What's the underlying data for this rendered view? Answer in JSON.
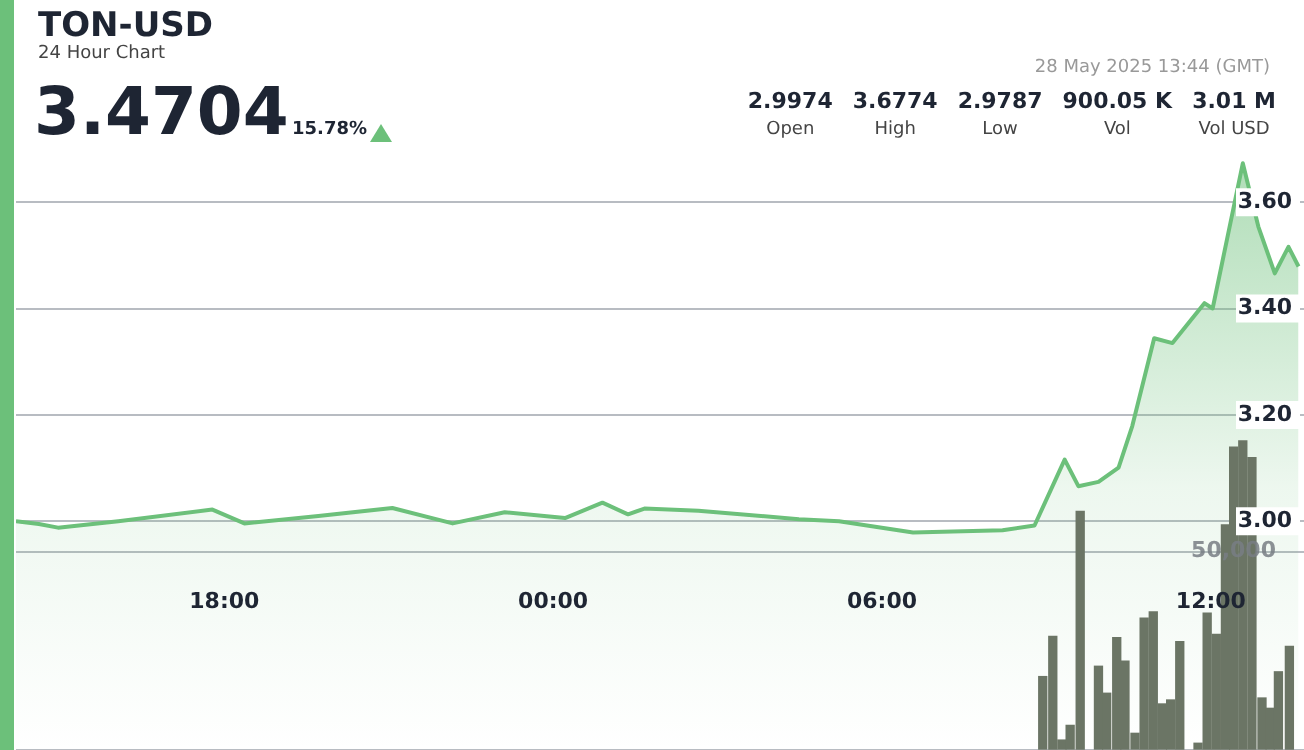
{
  "chart_data": {
    "type": "area",
    "title": "TON-USD",
    "subtitle": "24 Hour Chart",
    "annotations": [
      "3.4704",
      "15.78%",
      "28 May 2025 13:44 (GMT)",
      "2.9974",
      "Open",
      "3.6774",
      "High",
      "2.9787",
      "Low",
      "900.05 K",
      "Vol",
      "3.01 M",
      "Vol USD"
    ],
    "xlim": [
      "2025-05-27T14:12",
      "2025-05-28T13:42"
    ],
    "xticks": [
      {
        "value": "2025-05-27T18:00",
        "label": "18:00"
      },
      {
        "value": "2025-05-28T00:00",
        "label": "00:00"
      },
      {
        "value": "2025-05-28T06:00",
        "label": "06:00"
      },
      {
        "value": "2025-05-28T12:00",
        "label": "12:00"
      }
    ],
    "ylim": [
      2.57,
      3.98
    ],
    "yticks": [
      {
        "value": 3,
        "label": "3.00"
      },
      {
        "value": 3.2,
        "label": "3.20"
      },
      {
        "value": 3.4,
        "label": "3.40"
      },
      {
        "value": 3.6,
        "label": "3.60"
      }
    ],
    "y2lim": [
      0,
      189000
    ],
    "y2ticks": [
      {
        "value": 0,
        "label": null
      },
      {
        "value": 50000,
        "label": "50,000"
      }
    ],
    "grid": "y",
    "legend": false,
    "marker": "none",
    "line_style": "solid",
    "series": [
      {
        "color": "#6cc07a",
        "x": [
          "2025-05-27T14:12",
          "2025-05-27T14:37",
          "2025-05-27T14:58",
          "2025-05-27T16:04",
          "2025-05-27T17:47",
          "2025-05-27T18:22",
          "2025-05-27T19:43",
          "2025-05-27T21:04",
          "2025-05-27T22:10",
          "2025-05-27T23:07",
          "2025-05-28T00:13",
          "2025-05-28T00:54",
          "2025-05-28T01:22",
          "2025-05-28T01:40",
          "2025-05-28T02:39",
          "2025-05-28T04:29",
          "2025-05-28T05:13",
          "2025-05-28T06:34",
          "2025-05-28T08:12",
          "2025-05-28T08:47",
          "2025-05-28T09:20",
          "2025-05-28T09:35",
          "2025-05-28T09:57",
          "2025-05-28T10:19",
          "2025-05-28T10:34",
          "2025-05-28T10:58",
          "2025-05-28T11:18",
          "2025-05-28T11:53",
          "2025-05-28T12:02",
          "2025-05-28T12:35",
          "2025-05-28T12:52",
          "2025-05-28T13:10",
          "2025-05-28T13:25",
          "2025-05-28T13:36"
        ],
        "values": [
          3.0,
          2.995,
          2.988,
          3.0,
          3.022,
          2.996,
          3.01,
          3.025,
          2.996,
          3.017,
          3.006,
          3.035,
          3.013,
          3.024,
          3.02,
          3.004,
          3.0,
          2.979,
          2.983,
          2.992,
          3.116,
          3.066,
          3.074,
          3.101,
          3.179,
          3.344,
          3.335,
          3.41,
          3.4,
          3.673,
          3.554,
          3.466,
          3.516,
          3.479
        ]
      },
      {
        "type": "bar",
        "axis": "y2",
        "color": "#6b7565",
        "x": [
          "2025-05-28T08:56",
          "2025-05-28T09:07",
          "2025-05-28T09:17",
          "2025-05-28T09:26",
          "2025-05-28T09:37",
          "2025-05-28T09:57",
          "2025-05-28T10:06",
          "2025-05-28T10:17",
          "2025-05-28T10:26",
          "2025-05-28T10:37",
          "2025-05-28T10:47",
          "2025-05-28T10:57",
          "2025-05-28T11:07",
          "2025-05-28T11:16",
          "2025-05-28T11:26",
          "2025-05-28T11:46",
          "2025-05-28T11:56",
          "2025-05-28T12:06",
          "2025-05-28T12:16",
          "2025-05-28T12:25",
          "2025-05-28T12:35",
          "2025-05-28T12:45",
          "2025-05-28T12:56",
          "2025-05-28T13:05",
          "2025-05-28T13:14",
          "2025-05-28T13:26"
        ],
        "values": [
          18500,
          28600,
          2500,
          6200,
          60100,
          21100,
          14300,
          28300,
          22400,
          4200,
          33200,
          34800,
          11600,
          12600,
          27300,
          1700,
          34500,
          29100,
          56700,
          76300,
          77900,
          73700,
          13100,
          10500,
          19700,
          26100
        ]
      }
    ]
  }
}
